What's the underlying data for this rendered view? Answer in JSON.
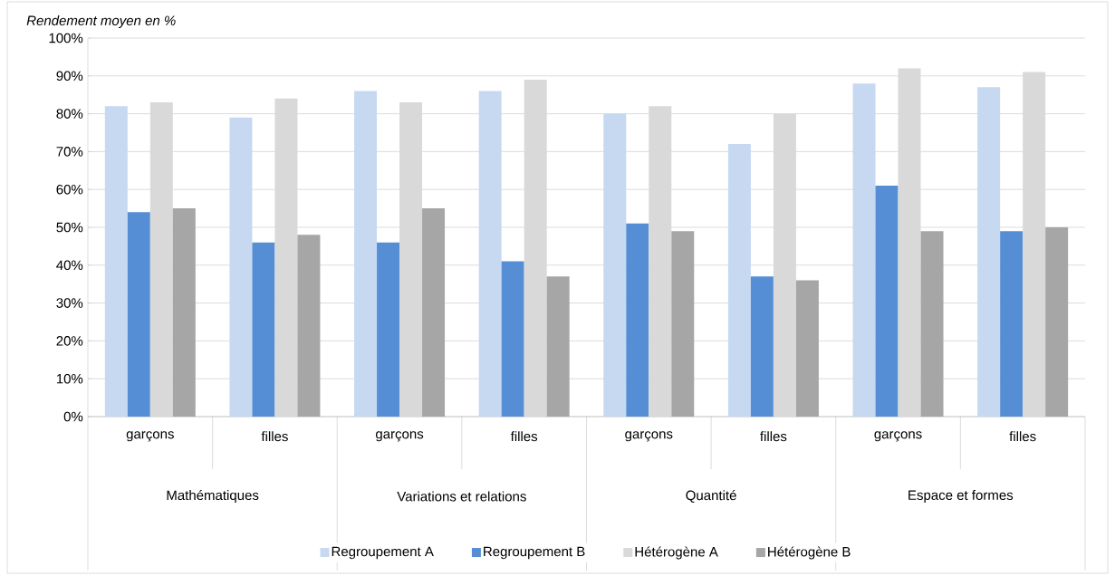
{
  "chart_data": {
    "type": "bar",
    "ylabel": "Rendement moyen en %",
    "categories": [
      "garçons",
      "filles",
      "garçons",
      "filles",
      "garçons",
      "filles",
      "garçons",
      "filles"
    ],
    "annotations": [
      "Mathématiques",
      "Variations et relations",
      "Quantité",
      "Espace et formes"
    ],
    "series": [
      {
        "name": "Regroupement A",
        "color": "#c6d9f1",
        "values": [
          82,
          79,
          86,
          86,
          80,
          72,
          88,
          87
        ]
      },
      {
        "name": "Regroupement B",
        "color": "#558ed5",
        "values": [
          54,
          46,
          46,
          41,
          51,
          37,
          61,
          49
        ]
      },
      {
        "name": "Hétérogène A",
        "color": "#d9d9d9",
        "values": [
          83,
          84,
          83,
          89,
          82,
          80,
          92,
          91
        ]
      },
      {
        "name": "Hétérogène B",
        "color": "#a6a6a6",
        "values": [
          55,
          48,
          55,
          37,
          49,
          36,
          49,
          50
        ]
      }
    ],
    "ylim": [
      0,
      100
    ],
    "yticks": [
      {
        "value": 0,
        "label": "0%"
      },
      {
        "value": 10,
        "label": "10%"
      },
      {
        "value": 20,
        "label": "20%"
      },
      {
        "value": 30,
        "label": "30%"
      },
      {
        "value": 40,
        "label": "40%"
      },
      {
        "value": 50,
        "label": "50%"
      },
      {
        "value": 60,
        "label": "60%"
      },
      {
        "value": 70,
        "label": "70%"
      },
      {
        "value": 80,
        "label": "80%"
      },
      {
        "value": 90,
        "label": "90%"
      },
      {
        "value": 100,
        "label": "100%"
      }
    ],
    "grid": "y",
    "legend": "bottom"
  }
}
